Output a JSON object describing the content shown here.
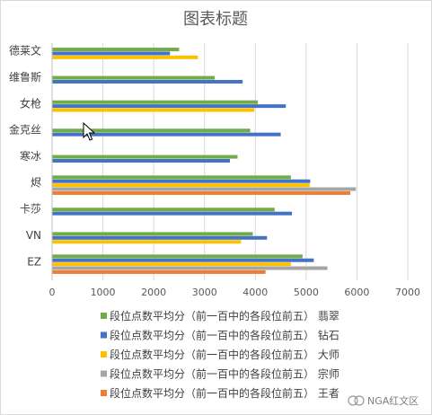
{
  "chart_data": {
    "type": "bar",
    "orientation": "horizontal",
    "title": "图表标题",
    "categories": [
      "德莱文",
      "维鲁斯",
      "女枪",
      "金克丝",
      "寒冰",
      "烬",
      "卡莎",
      "VN",
      "EZ"
    ],
    "xlim": [
      0,
      7000
    ],
    "xticks": [
      0,
      1000,
      2000,
      3000,
      4000,
      5000,
      6000,
      7000
    ],
    "grid": true,
    "legend_position": "bottom",
    "series": [
      {
        "name": "段位点数平均分（前一百中的各段位前五） 翡翠",
        "color": "#70ad47",
        "values": [
          2500,
          3200,
          4050,
          3900,
          3650,
          4700,
          4380,
          3950,
          4930
        ]
      },
      {
        "name": "段位点数平均分（前一百中的各段位前五） 钻石",
        "color": "#4472c4",
        "values": [
          2320,
          3750,
          4600,
          4500,
          3500,
          5080,
          4720,
          4230,
          5150
        ]
      },
      {
        "name": "段位点数平均分（前一百中的各段位前五） 大师",
        "color": "#ffc000",
        "values": [
          2870,
          null,
          3980,
          null,
          null,
          5070,
          null,
          3720,
          4700
        ]
      },
      {
        "name": "段位点数平均分（前一百中的各段位前五） 宗师",
        "color": "#a5a5a5",
        "values": [
          null,
          null,
          null,
          null,
          null,
          5980,
          null,
          null,
          5420
        ]
      },
      {
        "name": "段位点数平均分（前一百中的各段位前五） 王者",
        "color": "#ed7d31",
        "values": [
          null,
          null,
          null,
          null,
          null,
          5870,
          null,
          null,
          4200
        ]
      }
    ]
  },
  "watermark": "NGA红文区"
}
